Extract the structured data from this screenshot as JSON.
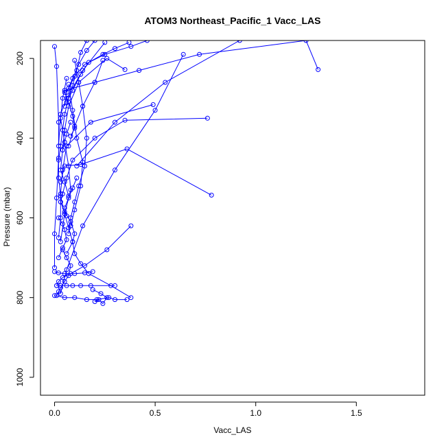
{
  "chart_data": {
    "type": "line",
    "title": "ATOM3 Northeast_Pacific_1 Vacc_LAS",
    "xlabel": "Vacc_LAS",
    "ylabel": "Pressure (mbar)",
    "xlim": [
      -0.07,
      1.84
    ],
    "ylim": [
      1045,
      155
    ],
    "y_reversed": true,
    "x_ticks": [
      0.0,
      0.5,
      1.0,
      1.5
    ],
    "x_tick_labels": [
      "0.0",
      "0.5",
      "1.0",
      "1.5"
    ],
    "y_ticks": [
      200,
      400,
      600,
      800,
      1000
    ],
    "y_tick_labels": [
      "200",
      "400",
      "600",
      "800",
      "1000"
    ],
    "grid": false,
    "legend": "none",
    "color": "#0000ff",
    "marker": "open-circle",
    "series": [
      {
        "x": [
          0.16,
          0.13,
          0.11,
          0.09,
          0.07,
          0.05,
          0.04,
          0.03,
          0.02,
          0.02,
          0.03,
          0.05,
          0.07,
          0.09,
          0.1,
          0.13,
          0.17,
          0.28,
          0.38
        ],
        "y": [
          155,
          185,
          230,
          268,
          300,
          340,
          380,
          420,
          455,
          500,
          545,
          590,
          625,
          660,
          690,
          715,
          740,
          770,
          800
        ]
      },
      {
        "x": [
          1.31,
          1.25,
          0.72,
          0.42,
          0.2,
          0.05
        ],
        "y": [
          228,
          155,
          190,
          230,
          260,
          280
        ]
      },
      {
        "x": [
          0.76,
          0.35,
          0.2,
          0.09,
          0.06,
          0.04,
          0.03
        ],
        "y": [
          350,
          355,
          400,
          455,
          500,
          540,
          560
        ]
      },
      {
        "x": [
          0.78,
          0.36,
          0.13,
          0.05,
          0.03
        ],
        "y": [
          543,
          427,
          466,
          470,
          510
        ]
      },
      {
        "x": [
          0.38,
          0.26,
          0.15,
          0.08,
          0.04,
          0.02,
          0.01
        ],
        "y": [
          620,
          680,
          720,
          740,
          750,
          760,
          770
        ]
      },
      {
        "x": [
          0.49,
          0.18,
          0.06,
          0.04,
          0.03,
          0.03,
          0.02
        ],
        "y": [
          316,
          360,
          420,
          480,
          540,
          600,
          650
        ]
      },
      {
        "x": [
          0.64,
          0.5,
          0.3,
          0.14,
          0.06,
          0.03
        ],
        "y": [
          190,
          330,
          480,
          620,
          730,
          790
        ]
      },
      {
        "x": [
          0.35,
          0.26,
          0.12,
          0.07,
          0.05,
          0.04
        ],
        "y": [
          228,
          200,
          260,
          320,
          380,
          430
        ]
      },
      {
        "x": [
          0.24,
          0.2,
          0.14,
          0.1,
          0.07
        ],
        "y": [
          205,
          260,
          320,
          370,
          420
        ]
      },
      {
        "x": [
          0.92,
          0.55,
          0.3,
          0.11
        ],
        "y": [
          155,
          260,
          360,
          470
        ]
      },
      {
        "x": [
          0.1,
          0.12,
          0.14,
          0.16,
          0.15,
          0.12,
          0.1,
          0.08,
          0.07
        ],
        "y": [
          205,
          260,
          320,
          400,
          470,
          520,
          560,
          600,
          640
        ]
      },
      {
        "x": [
          0.0,
          0.01,
          0.02,
          0.02,
          0.01,
          0.0,
          0.0
        ],
        "y": [
          170,
          220,
          360,
          450,
          550,
          640,
          725
        ]
      },
      {
        "x": [
          0.25,
          0.14,
          0.06,
          0.03,
          0.02
        ],
        "y": [
          160,
          230,
          300,
          340,
          420
        ]
      },
      {
        "x": [
          0.07,
          0.09,
          0.11,
          0.14,
          0.13,
          0.1,
          0.08
        ],
        "y": [
          265,
          330,
          400,
          460,
          520,
          580,
          620
        ]
      },
      {
        "x": [
          0.06,
          0.04,
          0.03,
          0.05,
          0.07,
          0.08,
          0.05,
          0.03
        ],
        "y": [
          250,
          300,
          350,
          410,
          470,
          530,
          590,
          660
        ]
      },
      {
        "x": [
          0.01,
          0.03,
          0.06,
          0.09,
          0.13,
          0.18,
          0.3
        ],
        "y": [
          770,
          770,
          770,
          770,
          770,
          770,
          770
        ]
      },
      {
        "x": [
          0.0,
          0.05,
          0.1,
          0.16,
          0.21,
          0.27,
          0.3,
          0.36
        ],
        "y": [
          795,
          800,
          800,
          805,
          805,
          800,
          805,
          805
        ]
      },
      {
        "x": [
          0.2,
          0.22,
          0.24,
          0.26,
          0.23,
          0.19
        ],
        "y": [
          810,
          805,
          815,
          800,
          790,
          780
        ]
      },
      {
        "x": [
          0.19,
          0.15,
          0.1,
          0.05,
          0.02,
          0.0
        ],
        "y": [
          735,
          738,
          740,
          740,
          738,
          735
        ]
      },
      {
        "x": [
          0.04,
          0.06,
          0.08,
          0.07,
          0.05,
          0.03,
          0.02,
          0.01
        ],
        "y": [
          680,
          700,
          720,
          745,
          760,
          775,
          785,
          795
        ]
      },
      {
        "x": [
          0.03,
          0.05,
          0.08,
          0.1,
          0.09,
          0.06
        ],
        "y": [
          560,
          585,
          610,
          640,
          660,
          690
        ]
      },
      {
        "x": [
          0.08,
          0.06,
          0.04,
          0.03,
          0.05,
          0.07
        ],
        "y": [
          360,
          390,
          430,
          480,
          510,
          545
        ]
      },
      {
        "x": [
          0.05,
          0.07,
          0.09,
          0.1,
          0.08
        ],
        "y": [
          285,
          310,
          345,
          375,
          395
        ]
      },
      {
        "x": [
          0.02,
          0.04,
          0.05,
          0.06,
          0.04,
          0.02
        ],
        "y": [
          600,
          615,
          630,
          655,
          675,
          700
        ]
      },
      {
        "x": [
          0.11,
          0.09,
          0.07,
          0.05,
          0.06
        ],
        "y": [
          500,
          525,
          550,
          575,
          595
        ]
      },
      {
        "x": [
          0.37,
          0.3,
          0.24,
          0.17,
          0.13,
          0.09,
          0.06
        ],
        "y": [
          160,
          175,
          190,
          210,
          240,
          280,
          310
        ]
      },
      {
        "x": [
          0.46,
          0.38,
          0.25,
          0.15,
          0.1,
          0.07
        ],
        "y": [
          155,
          170,
          190,
          215,
          245,
          275
        ]
      },
      {
        "x": [
          0.2,
          0.16,
          0.12,
          0.09,
          0.06,
          0.05
        ],
        "y": [
          155,
          180,
          215,
          250,
          285,
          320
        ]
      }
    ]
  }
}
